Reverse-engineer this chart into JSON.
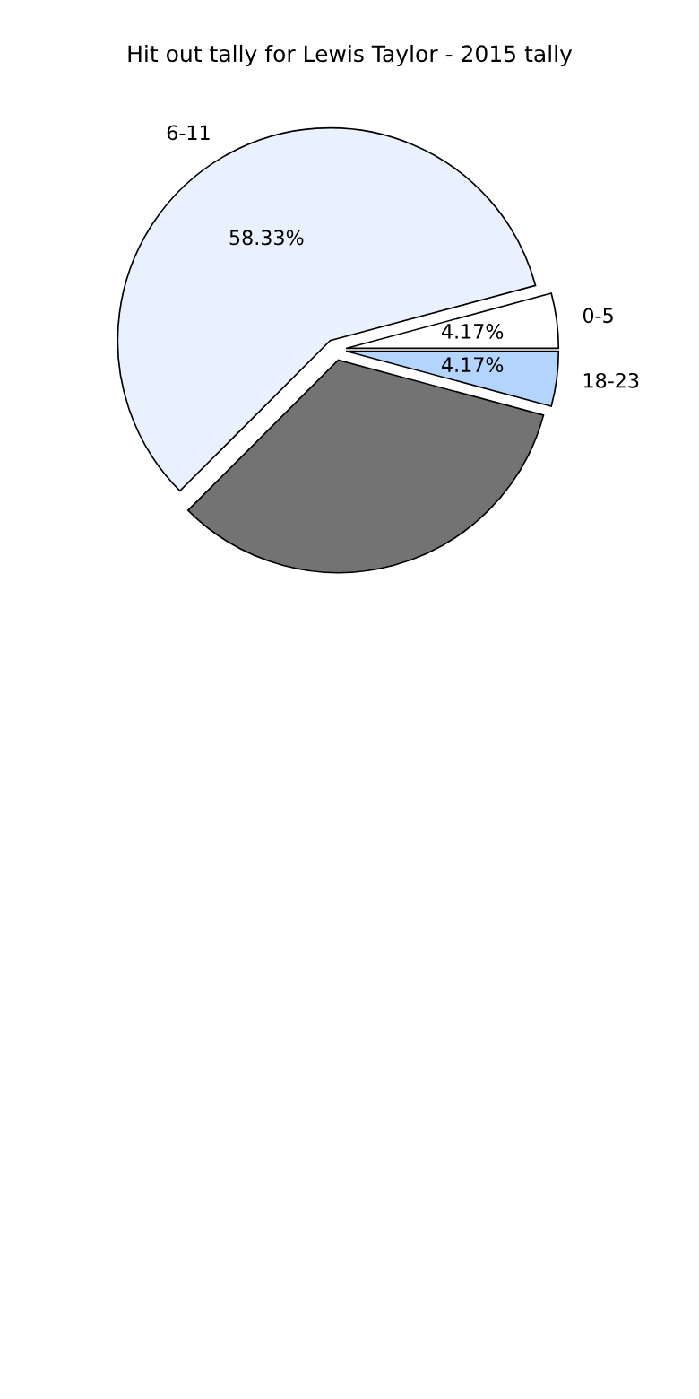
{
  "chart_data": {
    "type": "pie",
    "title": "Hit out tally for Lewis Taylor - 2015 tally",
    "categories": [
      "0-5",
      "6-11",
      null,
      "18-23"
    ],
    "values": [
      4.17,
      58.33,
      33.33,
      4.17
    ],
    "value_labels": [
      "4.17%",
      "58.33%",
      null,
      "4.17%"
    ],
    "colors": [
      "#ffffff",
      "#eaf1fe",
      "#737373",
      "#b3d4fc"
    ],
    "legend": false
  }
}
